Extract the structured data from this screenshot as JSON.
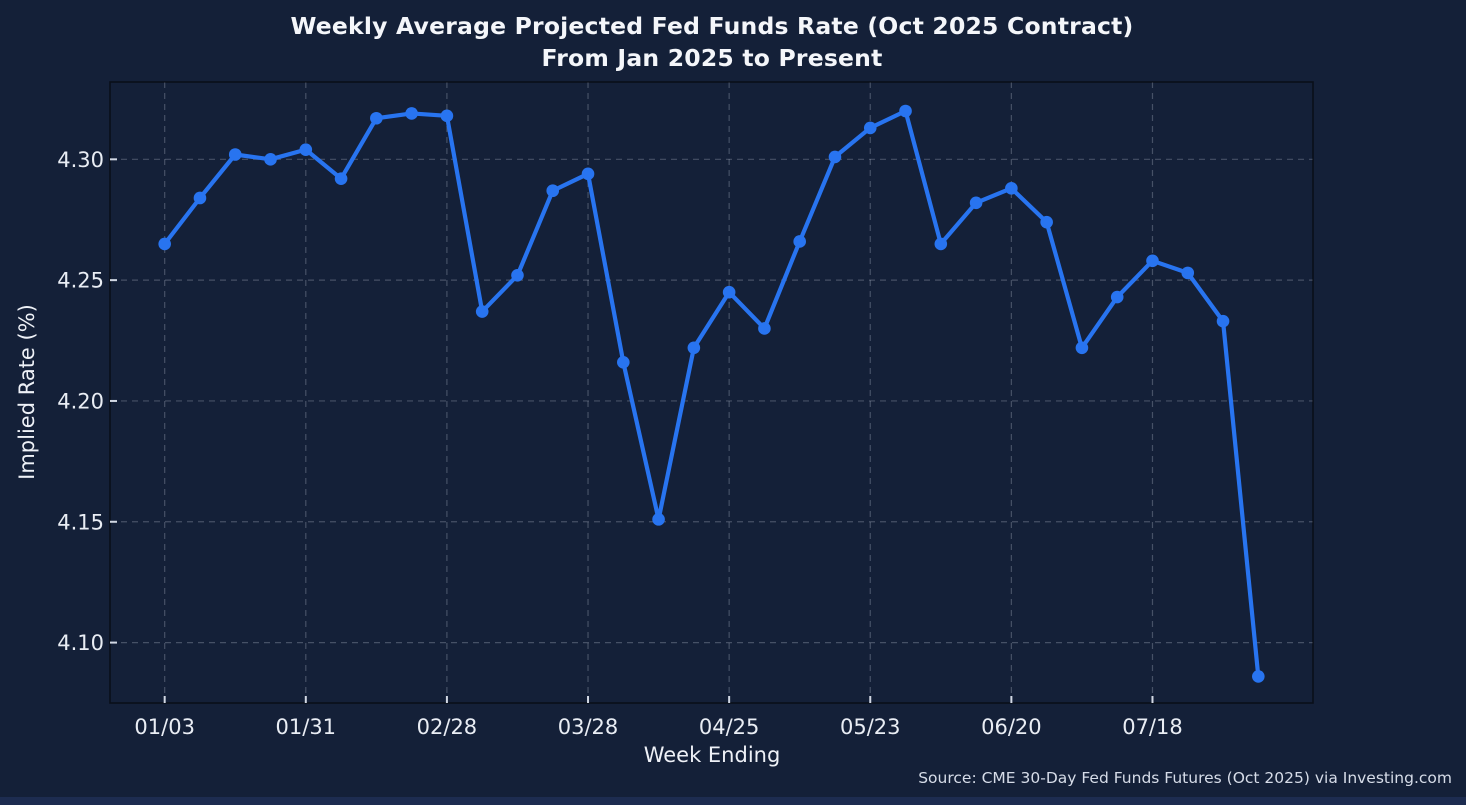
{
  "chart_data": {
    "type": "line",
    "title": "Weekly Average Projected Fed Funds Rate (Oct 2025 Contract)\nFrom Jan 2025 to Present",
    "xlabel": "Week Ending",
    "ylabel": "Implied Rate (%)",
    "source": "Source: CME 30-Day Fed Funds Futures (Oct 2025) via Investing.com",
    "series_name": "Weekly average implied fed funds rate",
    "x": [
      "01/03",
      "01/10",
      "01/17",
      "01/24",
      "01/31",
      "02/07",
      "02/14",
      "02/21",
      "02/28",
      "03/07",
      "03/14",
      "03/21",
      "03/28",
      "04/04",
      "04/11",
      "04/18",
      "04/25",
      "05/02",
      "05/09",
      "05/16",
      "05/23",
      "05/30",
      "06/06",
      "06/13",
      "06/20",
      "06/27",
      "07/04",
      "07/11",
      "07/18",
      "07/25",
      "08/01",
      "08/08"
    ],
    "values": [
      4.265,
      4.284,
      4.302,
      4.3,
      4.304,
      4.292,
      4.317,
      4.319,
      4.318,
      4.237,
      4.252,
      4.287,
      4.294,
      4.216,
      4.151,
      4.222,
      4.245,
      4.23,
      4.266,
      4.301,
      4.313,
      4.32,
      4.265,
      4.282,
      4.288,
      4.274,
      4.222,
      4.243,
      4.258,
      4.253,
      4.233,
      4.086
    ],
    "x_tick_labels": [
      "01/03",
      "01/31",
      "02/28",
      "03/28",
      "04/25",
      "05/23",
      "06/20",
      "07/18"
    ],
    "x_tick_indices": [
      0,
      4,
      8,
      12,
      16,
      20,
      24,
      28
    ],
    "y_tick_labels": [
      "4.30",
      "4.25",
      "4.20",
      "4.15",
      "4.10"
    ],
    "y_tick_values": [
      4.3,
      4.25,
      4.2,
      4.15,
      4.1
    ],
    "ylim": [
      4.075,
      4.332
    ],
    "grid": true,
    "legend": "none",
    "line_color": "#2874f0",
    "marker": "circle",
    "background_color": "#142038",
    "text_color": "#eef1f7"
  }
}
